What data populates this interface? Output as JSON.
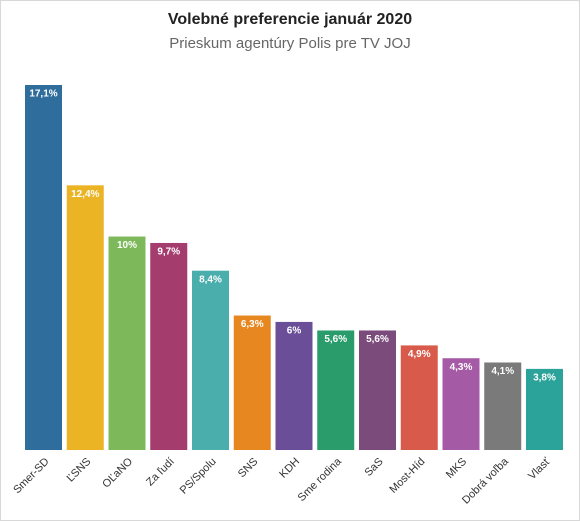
{
  "chart_data": {
    "type": "bar",
    "title": "Volebné preferencie január 2020",
    "subtitle": "Prieskum agentúry Polis pre TV JOJ",
    "categories": [
      "Smer-SD",
      "ĽSNS",
      "OĽaNO",
      "Za ľudí",
      "PS/Spolu",
      "SNS",
      "KDH",
      "Sme rodina",
      "SaS",
      "Most-Híd",
      "MKS",
      "Dobrá voľba",
      "Vlasť"
    ],
    "values": [
      17.1,
      12.4,
      10,
      9.7,
      8.4,
      6.3,
      6,
      5.6,
      5.6,
      4.9,
      4.3,
      4.1,
      3.8
    ],
    "value_labels": [
      "17,1%",
      "12,4%",
      "10%",
      "9,7%",
      "8,4%",
      "6,3%",
      "6%",
      "5,6%",
      "5,6%",
      "4,9%",
      "4,3%",
      "4,1%",
      "3,8%"
    ],
    "colors": [
      "#2f6e9c",
      "#ebb425",
      "#7db85a",
      "#a43c6e",
      "#4aaead",
      "#e6881f",
      "#6a4f98",
      "#2a9b6b",
      "#7b4b7b",
      "#d85a4a",
      "#a55aa5",
      "#7a7a7a",
      "#2ca39a"
    ]
  }
}
